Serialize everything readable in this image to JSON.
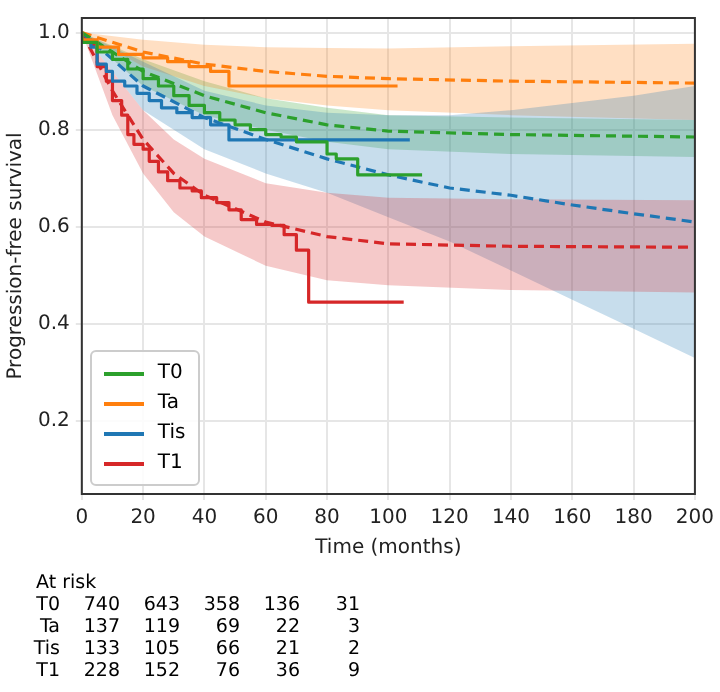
{
  "chart_data": {
    "type": "step",
    "xlabel": "Time (months)",
    "ylabel": "Progression-free survival",
    "xlim": [
      0,
      200
    ],
    "xticks": [
      0,
      20,
      40,
      60,
      80,
      100,
      120,
      140,
      160,
      180,
      200
    ],
    "ylim": [
      0.05,
      1.03
    ],
    "yticks": [
      0.2,
      0.4,
      0.6,
      0.8,
      {
        "value": 1,
        "label": "1.0"
      }
    ],
    "grid": true,
    "legend": "bottom left",
    "marker": "none",
    "series": [
      {
        "name": "T0",
        "color": "#2ca02c",
        "x": [
          0,
          5,
          10,
          15,
          20,
          25,
          30,
          35,
          40,
          45,
          50,
          55,
          60,
          65,
          70,
          80,
          83,
          90,
          96,
          111
        ],
        "values": [
          1,
          0.98,
          0.96,
          0.945,
          0.925,
          0.905,
          0.89,
          0.87,
          0.85,
          0.835,
          0.82,
          0.81,
          0.8,
          0.79,
          0.785,
          0.775,
          0.75,
          0.74,
          0.707,
          0.707
        ]
      },
      {
        "name": "Ta",
        "color": "#ff7f0e",
        "x": [
          0,
          5,
          12,
          20,
          28,
          35,
          42,
          48,
          55,
          103
        ],
        "values": [
          1,
          0.985,
          0.97,
          0.955,
          0.948,
          0.94,
          0.93,
          0.92,
          0.89,
          0.89
        ]
      },
      {
        "name": "Tis",
        "color": "#1f77b4",
        "x": [
          0,
          3,
          5,
          8,
          10,
          14,
          18,
          22,
          26,
          31,
          36,
          42,
          48,
          54,
          107
        ],
        "values": [
          1,
          0.985,
          0.97,
          0.935,
          0.92,
          0.9,
          0.89,
          0.875,
          0.86,
          0.845,
          0.835,
          0.825,
          0.81,
          0.779,
          0.779
        ]
      },
      {
        "name": "T1",
        "color": "#d62728",
        "x": [
          0,
          3,
          5,
          8,
          10,
          13,
          15,
          17,
          20,
          22,
          25,
          28,
          32,
          36,
          39,
          44,
          48,
          52,
          57,
          62,
          66,
          70,
          74,
          92,
          105
        ],
        "values": [
          1,
          0.985,
          0.974,
          0.93,
          0.9,
          0.86,
          0.83,
          0.79,
          0.77,
          0.76,
          0.735,
          0.713,
          0.695,
          0.68,
          0.674,
          0.66,
          0.65,
          0.635,
          0.615,
          0.605,
          0.603,
          0.584,
          0.552,
          0.445,
          0.445
        ]
      },
      {
        "type": "line",
        "line_style": "dashed",
        "color": "#2ca02c",
        "x": [
          0,
          20,
          40,
          60,
          80,
          100,
          140,
          200
        ],
        "values": [
          1,
          0.92,
          0.87,
          0.835,
          0.81,
          0.797,
          0.79,
          0.785
        ],
        "lower": [
          1,
          0.89,
          0.83,
          0.8,
          0.775,
          0.76,
          0.75,
          0.744
        ],
        "upper": [
          1,
          0.945,
          0.9,
          0.865,
          0.845,
          0.83,
          0.825,
          0.82
        ]
      },
      {
        "type": "line",
        "line_style": "dashed",
        "color": "#ff7f0e",
        "x": [
          0,
          20,
          40,
          60,
          80,
          100,
          140,
          200
        ],
        "values": [
          1,
          0.96,
          0.935,
          0.92,
          0.91,
          0.905,
          0.9,
          0.896
        ],
        "lower": [
          1,
          0.93,
          0.89,
          0.865,
          0.85,
          0.84,
          0.83,
          0.82
        ],
        "upper": [
          1,
          0.985,
          0.975,
          0.97,
          0.968,
          0.967,
          0.972,
          0.977
        ]
      },
      {
        "type": "line",
        "line_style": "dashed",
        "color": "#1f77b4",
        "x": [
          0,
          20,
          40,
          60,
          80,
          100,
          120,
          140,
          160,
          180,
          200
        ],
        "values": [
          1,
          0.89,
          0.825,
          0.78,
          0.74,
          0.707,
          0.68,
          0.665,
          0.645,
          0.627,
          0.61
        ],
        "lower": [
          1,
          0.84,
          0.76,
          0.71,
          0.67,
          0.62,
          0.57,
          0.51,
          0.45,
          0.39,
          0.33
        ],
        "upper": [
          1,
          0.94,
          0.88,
          0.85,
          0.835,
          0.83,
          0.83,
          0.84,
          0.855,
          0.87,
          0.89
        ]
      },
      {
        "type": "line",
        "line_style": "dashed",
        "color": "#d62728",
        "x": [
          0,
          10,
          20,
          30,
          40,
          60,
          80,
          100,
          140,
          200
        ],
        "values": [
          1,
          0.88,
          0.78,
          0.71,
          0.665,
          0.61,
          0.58,
          0.565,
          0.56,
          0.558
        ],
        "lower": [
          1,
          0.83,
          0.71,
          0.63,
          0.58,
          0.52,
          0.49,
          0.48,
          0.47,
          0.465
        ],
        "upper": [
          1,
          0.92,
          0.84,
          0.78,
          0.74,
          0.69,
          0.67,
          0.66,
          0.657,
          0.655
        ]
      }
    ],
    "annotations": [
      "At risk",
      "T0 740 643 358 136 31",
      "Ta 137 119 69 22 3",
      "Tis 133 105 66 21 2",
      "T1 228 152 76 36 9"
    ]
  }
}
